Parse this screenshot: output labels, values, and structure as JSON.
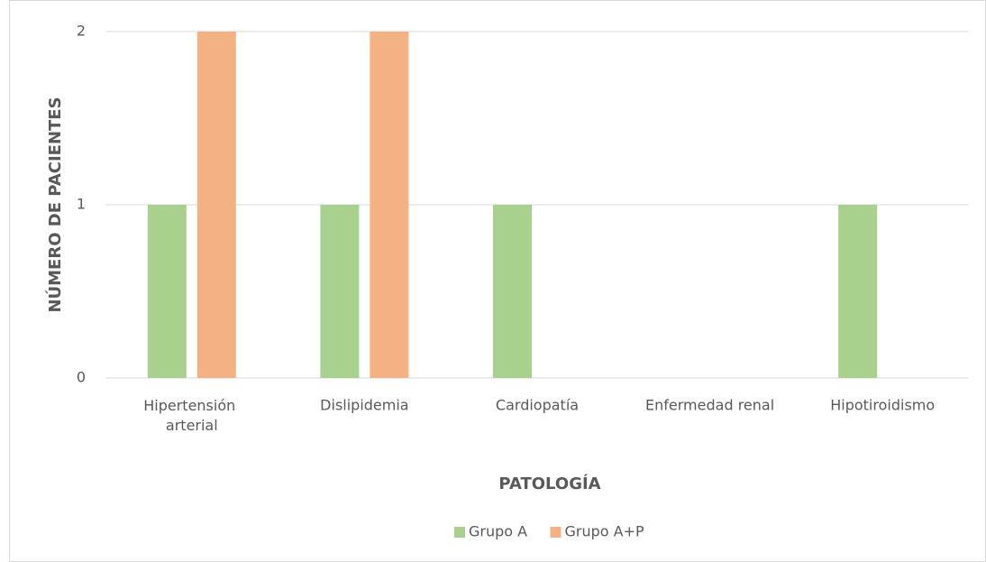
{
  "chart_data": {
    "type": "bar",
    "categories": [
      "Hipertensión arterial",
      "Dislipidemia",
      "Cardiopatía",
      "Enfermedad renal",
      "Hipotiroidismo"
    ],
    "series": [
      {
        "name": "Grupo A",
        "color": "#a9d18e",
        "values": [
          1,
          1,
          1,
          0,
          1
        ]
      },
      {
        "name": "Grupo A+P",
        "color": "#f4b183",
        "values": [
          2,
          2,
          0,
          0,
          0
        ]
      }
    ],
    "xlabel": "PATOLOGÍA",
    "ylabel": "NÚMERO DE PACIENTES",
    "ylim": [
      0,
      2
    ],
    "yticks": [
      0,
      1,
      2
    ],
    "grid": true,
    "legend": "bottom"
  }
}
